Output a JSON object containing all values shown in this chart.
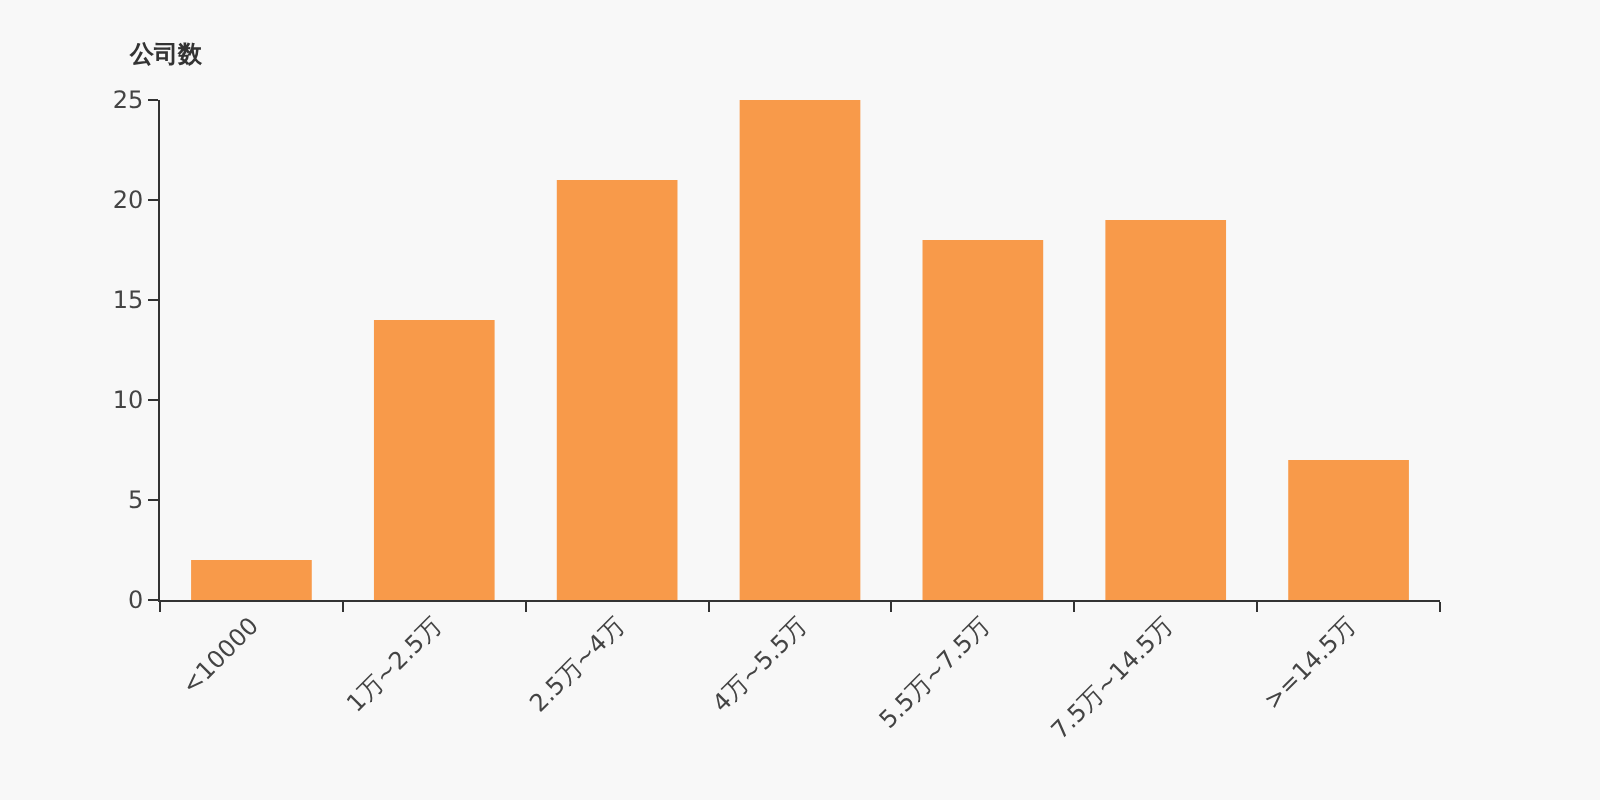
{
  "chart_data": {
    "type": "bar",
    "ylabel": "公司数",
    "categories": [
      "<10000",
      "1万~2.5万",
      "2.5万~4万",
      "4万~5.5万",
      "5.5万~7.5万",
      "7.5万~14.5万",
      ">=14.5万"
    ],
    "values": [
      2,
      14,
      21,
      25,
      18,
      19,
      7
    ],
    "color": "#f89a4a",
    "ylim": [
      0,
      25
    ],
    "yticks": [
      0,
      5,
      10,
      15,
      20,
      25
    ]
  }
}
